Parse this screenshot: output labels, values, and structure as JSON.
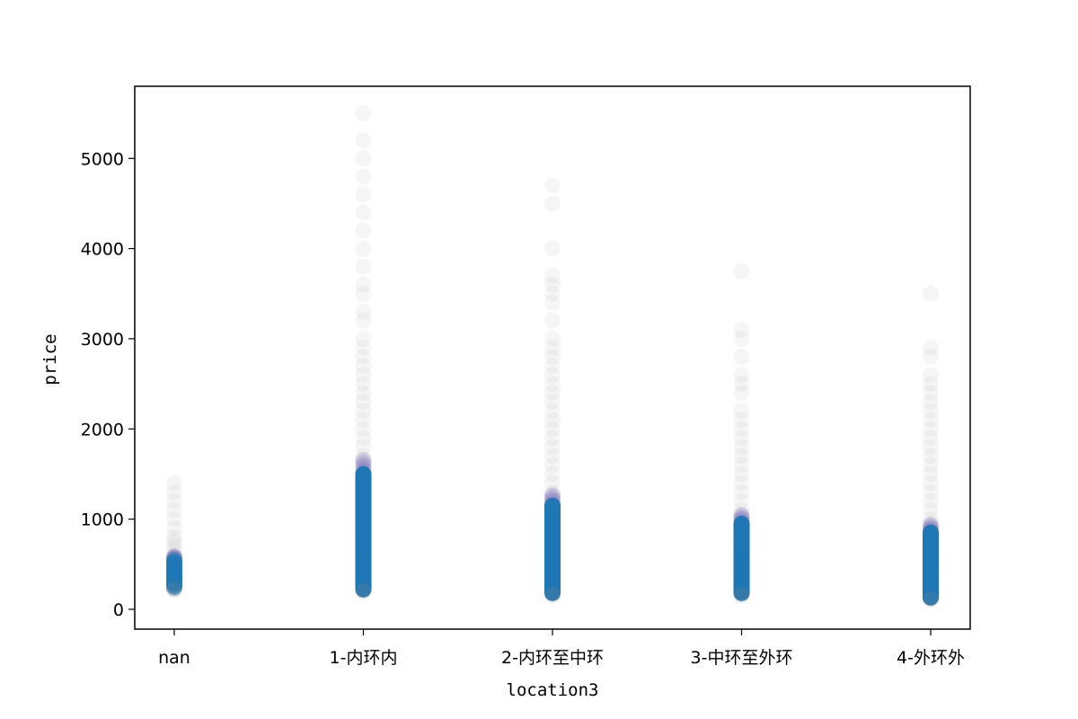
{
  "chart_data": {
    "type": "scatter",
    "title": "",
    "xlabel": "location3",
    "ylabel": "price",
    "categories": [
      "nan",
      "1-内环内",
      "2-内环至中环",
      "3-中环至外环",
      "4-外环外"
    ],
    "ylim": [
      -220,
      5800
    ],
    "yticks": [
      0,
      1000,
      2000,
      3000,
      4000,
      5000
    ],
    "grid": false,
    "point_color": "#1f77b4",
    "point_alpha_approx": 0.02,
    "series": [
      {
        "category": "nan",
        "dense_range": [
          240,
          550
        ],
        "sparse_values": [
          220,
          260,
          300,
          350,
          400,
          450,
          500,
          550,
          600,
          650,
          700,
          750,
          800,
          900,
          1000,
          1100,
          1200,
          1300,
          1400
        ]
      },
      {
        "category": "1-内环内",
        "dense_range": [
          220,
          1500
        ],
        "sparse_values": [
          1550,
          1600,
          1650,
          1700,
          1800,
          1900,
          2000,
          2100,
          2200,
          2300,
          2400,
          2500,
          2600,
          2700,
          2800,
          2900,
          3000,
          3200,
          3300,
          3500,
          3600,
          3800,
          4000,
          4200,
          4400,
          4600,
          4800,
          5000,
          5200,
          5500
        ]
      },
      {
        "category": "2-内环至中环",
        "dense_range": [
          180,
          1150
        ],
        "sparse_values": [
          1200,
          1250,
          1300,
          1400,
          1500,
          1600,
          1700,
          1800,
          1900,
          2000,
          2100,
          2200,
          2300,
          2400,
          2500,
          2600,
          2700,
          2800,
          2900,
          3000,
          3200,
          3400,
          3500,
          3600,
          3700,
          4000,
          4500,
          4700
        ]
      },
      {
        "category": "3-中环至外环",
        "dense_range": [
          180,
          950
        ],
        "sparse_values": [
          1000,
          1050,
          1100,
          1200,
          1300,
          1400,
          1500,
          1600,
          1700,
          1800,
          1900,
          2000,
          2100,
          2200,
          2400,
          2500,
          2600,
          2800,
          3000,
          3100,
          3750
        ]
      },
      {
        "category": "4-外环外",
        "dense_range": [
          130,
          850
        ],
        "sparse_values": [
          900,
          950,
          1000,
          1100,
          1200,
          1300,
          1400,
          1500,
          1600,
          1700,
          1800,
          1900,
          2000,
          2100,
          2200,
          2300,
          2400,
          2500,
          2600,
          2800,
          2900,
          3500
        ]
      }
    ]
  }
}
